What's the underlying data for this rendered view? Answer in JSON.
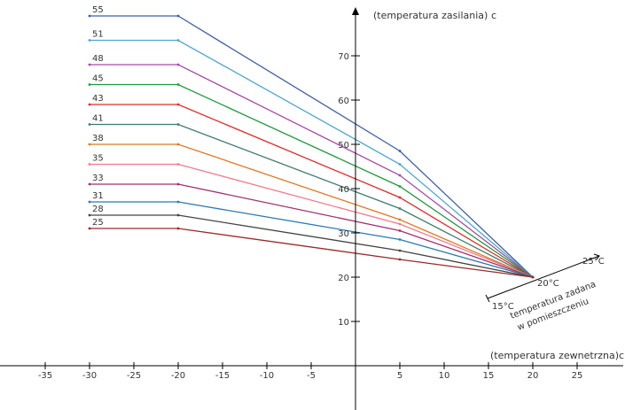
{
  "chart_data": {
    "type": "line",
    "y_axis_title": "(temperatura zasilania)",
    "y_axis_unit": "c",
    "x_axis_title": "(temperatura zewnetrzna)",
    "x_axis_unit": "c",
    "xlim": [
      -40,
      30
    ],
    "ylim": [
      -10,
      80
    ],
    "x_ticks": [
      -35,
      -30,
      -25,
      -20,
      -15,
      -10,
      -5,
      5,
      10,
      15,
      20,
      25
    ],
    "y_ticks": [
      10,
      20,
      30,
      40,
      50,
      60,
      70
    ],
    "x_tick_labels": [
      "-35",
      "-30",
      "-25",
      "-20",
      "-15",
      "-10",
      "-5",
      "5",
      "10",
      "15",
      "20",
      "25"
    ],
    "y_tick_labels": [
      "10",
      "20",
      "30",
      "40",
      "50",
      "60",
      "70"
    ],
    "grid": false,
    "room_axis": {
      "title_line1": "temperatura zadana",
      "title_line2": "w pomieszczeniu",
      "start_label": "15°C",
      "mid_label": "20°C",
      "end_label": "25°C"
    },
    "series": [
      {
        "name": "55",
        "color": "#3f5fa8",
        "points": [
          [
            -30,
            79
          ],
          [
            -20,
            79
          ],
          [
            5,
            48.5
          ],
          [
            20,
            20
          ]
        ]
      },
      {
        "name": "51",
        "color": "#4aa6d0",
        "points": [
          [
            -30,
            73.5
          ],
          [
            -20,
            73.5
          ],
          [
            5,
            45.5
          ],
          [
            20,
            20
          ]
        ]
      },
      {
        "name": "48",
        "color": "#a64aa6",
        "points": [
          [
            -30,
            68
          ],
          [
            -20,
            68
          ],
          [
            5,
            43
          ],
          [
            20,
            20
          ]
        ]
      },
      {
        "name": "45",
        "color": "#1c9a3c",
        "points": [
          [
            -30,
            63.5
          ],
          [
            -20,
            63.5
          ],
          [
            5,
            40.5
          ],
          [
            20,
            20
          ]
        ]
      },
      {
        "name": "43",
        "color": "#e02a2a",
        "points": [
          [
            -30,
            59
          ],
          [
            -20,
            59
          ],
          [
            5,
            38
          ],
          [
            20,
            20
          ]
        ]
      },
      {
        "name": "41",
        "color": "#3d7a6e",
        "points": [
          [
            -30,
            54.5
          ],
          [
            -20,
            54.5
          ],
          [
            5,
            35.5
          ],
          [
            20,
            20
          ]
        ]
      },
      {
        "name": "38",
        "color": "#e07820",
        "points": [
          [
            -30,
            50
          ],
          [
            -20,
            50
          ],
          [
            5,
            33
          ],
          [
            20,
            20
          ]
        ]
      },
      {
        "name": "35",
        "color": "#f07a8a",
        "points": [
          [
            -30,
            45.5
          ],
          [
            -20,
            45.5
          ],
          [
            5,
            32
          ],
          [
            20,
            20
          ]
        ]
      },
      {
        "name": "33",
        "color": "#a0306e",
        "points": [
          [
            -30,
            41
          ],
          [
            -20,
            41
          ],
          [
            5,
            30.5
          ],
          [
            20,
            20
          ]
        ]
      },
      {
        "name": "31",
        "color": "#2a7ab0",
        "points": [
          [
            -30,
            37
          ],
          [
            -20,
            37
          ],
          [
            5,
            28.5
          ],
          [
            20,
            20
          ]
        ]
      },
      {
        "name": "28",
        "color": "#444444",
        "points": [
          [
            -30,
            34
          ],
          [
            -20,
            34
          ],
          [
            5,
            26
          ],
          [
            20,
            20
          ]
        ]
      },
      {
        "name": "25",
        "color": "#9a2a2a",
        "points": [
          [
            -30,
            31
          ],
          [
            -20,
            31
          ],
          [
            5,
            24
          ],
          [
            20,
            20
          ]
        ]
      }
    ]
  }
}
